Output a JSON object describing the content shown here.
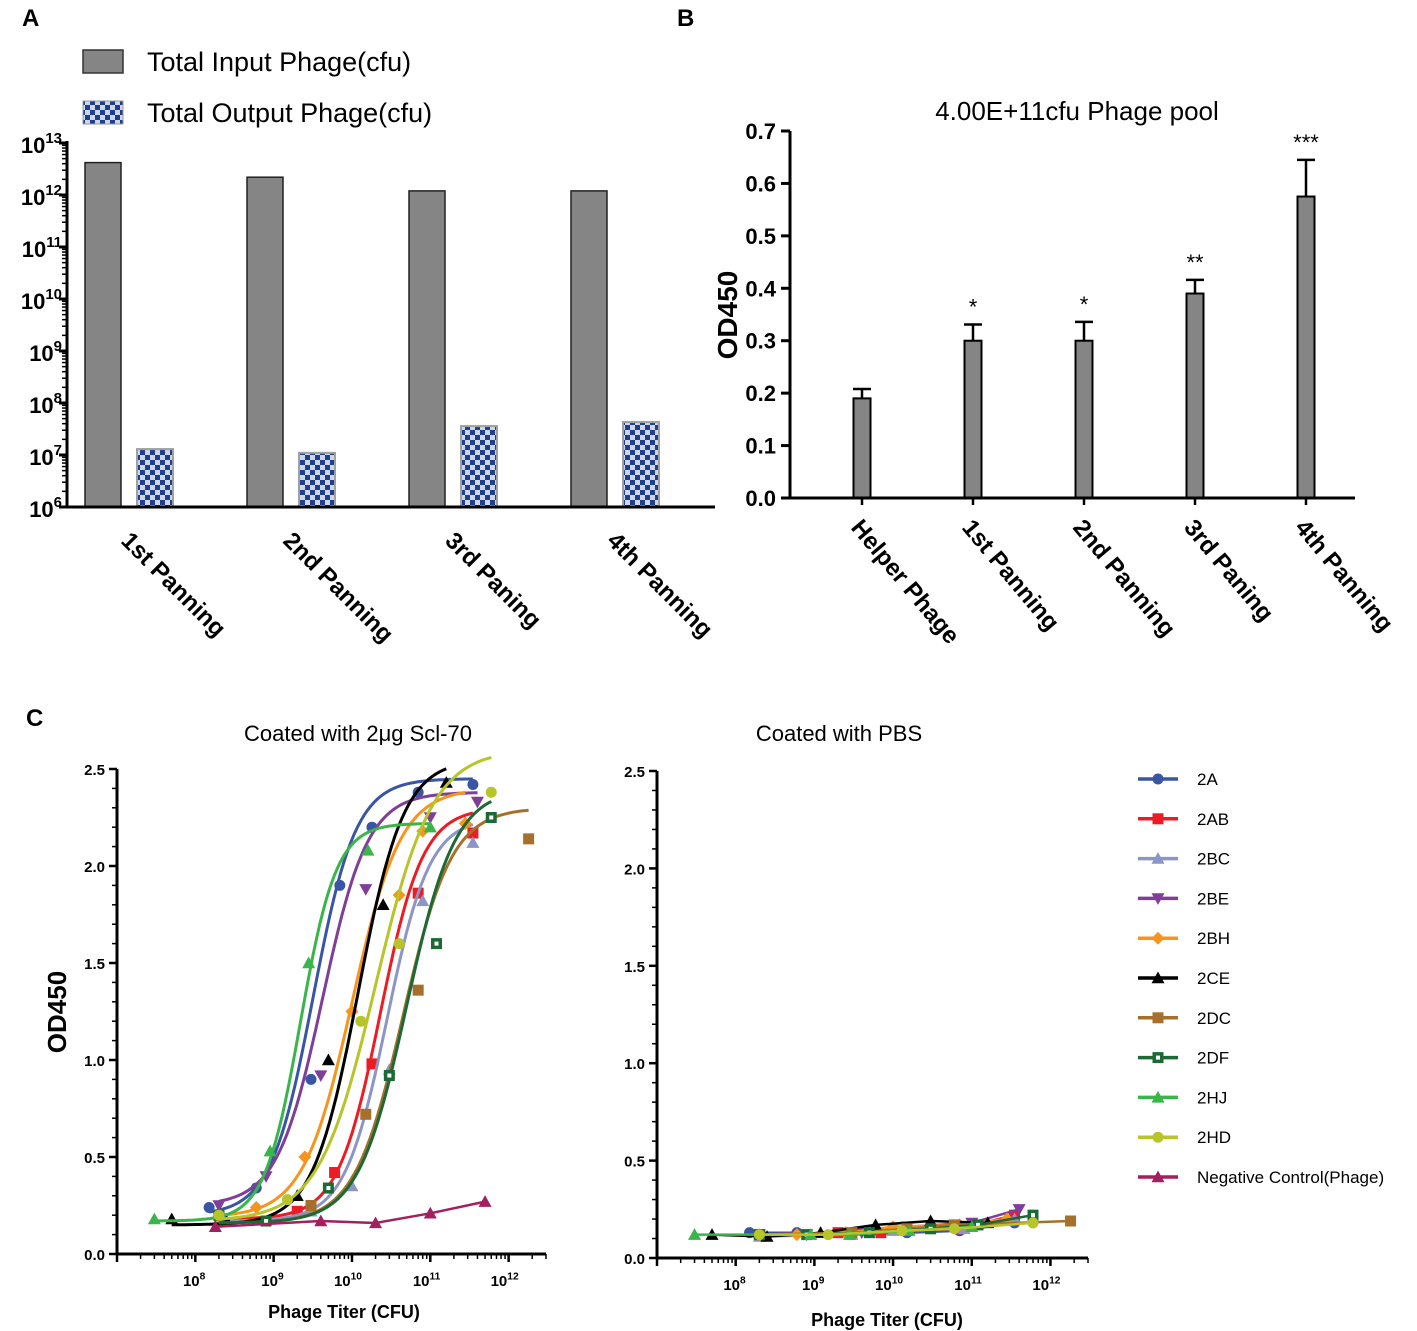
{
  "panels": {
    "a": "A",
    "b": "B",
    "c": "C"
  },
  "colors": {
    "input_bar": "#858585",
    "output_bar_fg": "#1e3f8e",
    "output_bar_bg": "#cfd6e6",
    "b_bar": "#858585"
  },
  "chart_data": [
    {
      "id": "A",
      "type": "bar",
      "scale": "log",
      "categories": [
        "1st Panning",
        "2nd Panning",
        "3rd Paning",
        "4th Panning"
      ],
      "series": [
        {
          "name": "Total Input Phage(cfu)",
          "values": [
            4200000000000.0,
            2200000000000.0,
            1200000000000.0,
            1200000000000.0
          ]
        },
        {
          "name": "Total Output Phage(cfu)",
          "values": [
            13000000.0,
            11000000.0,
            36000000.0,
            43000000.0
          ]
        }
      ],
      "yticks": [
        {
          "exp": 6,
          "label": "6"
        },
        {
          "exp": 7,
          "label": "7"
        },
        {
          "exp": 8,
          "label": "8"
        },
        {
          "exp": 9,
          "label": "9"
        },
        {
          "exp": 10,
          "label": "10"
        },
        {
          "exp": 11,
          "label": "11"
        },
        {
          "exp": 12,
          "label": "12"
        },
        {
          "exp": 13,
          "label": "13"
        }
      ],
      "tick_base": "10",
      "ylim": [
        1000000.0,
        10000000000000.0
      ]
    },
    {
      "id": "B",
      "type": "bar",
      "title": "4.00E+11cfu Phage pool",
      "ylabel": "OD450",
      "categories": [
        "Helper Phage",
        "1st Panning",
        "2nd Panning",
        "3rd Paning",
        "4th Panning"
      ],
      "values": [
        0.19,
        0.3,
        0.3,
        0.39,
        0.575
      ],
      "errors": [
        0.018,
        0.031,
        0.036,
        0.026,
        0.07
      ],
      "significance": [
        "",
        "*",
        "*",
        "**",
        "***"
      ],
      "yticks": [
        "0.0",
        "0.1",
        "0.2",
        "0.3",
        "0.4",
        "0.5",
        "0.6",
        "0.7"
      ],
      "ylim": [
        0,
        0.7
      ]
    },
    {
      "id": "C1",
      "type": "scatter",
      "title": "Coated with 2μg Scl-70",
      "ylabel": "OD450",
      "xlabel": "Phage Titer (CFU)",
      "xscale": "log",
      "xlim": [
        10000000.0,
        3000000000000.0
      ],
      "ylim": [
        0,
        2.5
      ],
      "yticks": [
        "0.0",
        "0.5",
        "1.0",
        "1.5",
        "2.0",
        "2.5"
      ],
      "xticks": [
        {
          "exp": 8,
          "label": "8"
        },
        {
          "exp": 9,
          "label": "9"
        },
        {
          "exp": 10,
          "label": "10"
        },
        {
          "exp": 11,
          "label": "11"
        },
        {
          "exp": 12,
          "label": "12"
        }
      ],
      "tick_base": "10",
      "series": [
        {
          "name": "2A",
          "color": "#3955a3",
          "marker": "circle",
          "ec50": 3200000000.0,
          "bottom": 0.2,
          "top": 2.45,
          "hill": 1.6,
          "x": [
            150000000.0,
            600000000.0,
            3000000000.0,
            7000000000.0,
            18000000000.0,
            70000000000.0,
            350000000000.0
          ],
          "y": [
            0.24,
            0.34,
            0.9,
            1.9,
            2.2,
            2.38,
            2.42
          ]
        },
        {
          "name": "2AB",
          "color": "#ed1c24",
          "marker": "square",
          "ec50": 23000000000.0,
          "bottom": 0.18,
          "top": 2.3,
          "hill": 1.6,
          "x": [
            200000000.0,
            2000000000.0,
            6000000000.0,
            18000000000.0,
            70000000000.0,
            350000000000.0
          ],
          "y": [
            0.2,
            0.22,
            0.42,
            0.98,
            1.86,
            2.17
          ]
        },
        {
          "name": "2BC",
          "color": "#8c96c6",
          "marker": "triangle-up",
          "ec50": 28000000000.0,
          "bottom": 0.17,
          "top": 2.25,
          "hill": 1.6,
          "x": [
            200000000.0,
            3000000000.0,
            10000000000.0,
            30000000000.0,
            80000000000.0,
            350000000000.0
          ],
          "y": [
            0.18,
            0.22,
            0.35,
            0.95,
            1.82,
            2.12
          ]
        },
        {
          "name": "2BE",
          "color": "#7f3f98",
          "marker": "triangle-down",
          "ec50": 4200000000.0,
          "bottom": 0.25,
          "top": 2.38,
          "hill": 1.5,
          "x": [
            200000000.0,
            800000000.0,
            4000000000.0,
            15000000000.0,
            100000000000.0,
            400000000000.0
          ],
          "y": [
            0.25,
            0.4,
            0.92,
            1.88,
            2.25,
            2.33
          ]
        },
        {
          "name": "2BH",
          "color": "#f7941d",
          "marker": "diamond",
          "ec50": 10000000000.0,
          "bottom": 0.19,
          "top": 2.4,
          "hill": 1.4,
          "x": [
            200000000.0,
            600000000.0,
            2500000000.0,
            10000000000.0,
            40000000000.0,
            80000000000.0,
            280000000000.0
          ],
          "y": [
            0.19,
            0.24,
            0.5,
            1.25,
            1.85,
            2.18,
            2.22
          ]
        },
        {
          "name": "2CE",
          "color": "#000000",
          "marker": "triangle-up",
          "ec50": 12000000000.0,
          "bottom": 0.15,
          "top": 2.55,
          "hill": 1.5,
          "x": [
            50000000.0,
            250000000.0,
            2000000000.0,
            5000000000.0,
            25000000000.0,
            160000000000.0
          ],
          "y": [
            0.18,
            0.17,
            0.3,
            1.0,
            1.8,
            2.43
          ]
        },
        {
          "name": "2DC",
          "color": "#a6702c",
          "marker": "square",
          "ec50": 45000000000.0,
          "bottom": 0.16,
          "top": 2.3,
          "hill": 1.4,
          "x": [
            200000000.0,
            3000000000.0,
            15000000000.0,
            70000000000.0,
            1800000000000.0
          ],
          "y": [
            0.2,
            0.25,
            0.72,
            1.36,
            2.14
          ]
        },
        {
          "name": "2DF",
          "color": "#1b6a36",
          "marker": "square-open",
          "ec50": 50000000000.0,
          "bottom": 0.16,
          "top": 2.4,
          "hill": 1.4,
          "x": [
            200000000.0,
            800000000.0,
            5000000000.0,
            30000000000.0,
            120000000000.0,
            600000000000.0
          ],
          "y": [
            0.2,
            0.17,
            0.34,
            0.92,
            1.6,
            2.25
          ]
        },
        {
          "name": "2HJ",
          "color": "#3ab54a",
          "marker": "triangle-up",
          "ec50": 2200000000.0,
          "bottom": 0.17,
          "top": 2.22,
          "hill": 1.9,
          "x": [
            30000000.0,
            900000000.0,
            2800000000.0,
            16000000000.0,
            100000000000.0
          ],
          "y": [
            0.18,
            0.53,
            1.5,
            2.08,
            2.2
          ]
        },
        {
          "name": "2HD",
          "color": "#b7c42a",
          "marker": "circle",
          "ec50": 20000000000.0,
          "bottom": 0.17,
          "top": 2.6,
          "hill": 1.2,
          "x": [
            200000000.0,
            1500000000.0,
            13000000000.0,
            40000000000.0,
            600000000000.0
          ],
          "y": [
            0.2,
            0.28,
            1.2,
            1.6,
            2.38
          ]
        },
        {
          "name": "Negative Control(Phage)",
          "color": "#a31f5e",
          "marker": "triangle-up",
          "linear": true,
          "x": [
            180000000.0,
            4000000000.0,
            20000000000.0,
            100000000000.0,
            500000000000.0
          ],
          "y": [
            0.14,
            0.17,
            0.16,
            0.21,
            0.27
          ]
        }
      ]
    },
    {
      "id": "C2",
      "type": "scatter",
      "title": "Coated with PBS",
      "xlabel": "Phage Titer (CFU)",
      "xscale": "log",
      "xlim": [
        10000000.0,
        3000000000000.0
      ],
      "ylim": [
        0,
        2.5
      ],
      "yticks": [
        "0.0",
        "0.5",
        "1.0",
        "1.5",
        "2.0",
        "2.5"
      ],
      "xticks": [
        {
          "exp": 8,
          "label": "8"
        },
        {
          "exp": 9,
          "label": "9"
        },
        {
          "exp": 10,
          "label": "10"
        },
        {
          "exp": 11,
          "label": "11"
        },
        {
          "exp": 12,
          "label": "12"
        }
      ],
      "tick_base": "10",
      "series": [
        {
          "name": "2A",
          "color": "#3955a3",
          "marker": "circle",
          "x": [
            150000000.0,
            600000000.0,
            3000000000.0,
            15000000000.0,
            70000000000.0,
            350000000000.0
          ],
          "y": [
            0.13,
            0.13,
            0.12,
            0.13,
            0.14,
            0.18
          ]
        },
        {
          "name": "2AB",
          "color": "#ed1c24",
          "marker": "square",
          "x": [
            200000000.0,
            2000000000.0,
            7000000000.0,
            70000000000.0,
            350000000000.0
          ],
          "y": [
            0.12,
            0.13,
            0.13,
            0.15,
            0.22
          ]
        },
        {
          "name": "2BC",
          "color": "#8c96c6",
          "marker": "triangle-up",
          "x": [
            200000000.0,
            3000000000.0,
            10000000000.0,
            80000000000.0,
            350000000000.0
          ],
          "y": [
            0.11,
            0.12,
            0.14,
            0.15,
            0.2
          ]
        },
        {
          "name": "2BE",
          "color": "#7f3f98",
          "marker": "triangle-down",
          "x": [
            200000000.0,
            800000000.0,
            4000000000.0,
            15000000000.0,
            100000000000.0,
            400000000000.0
          ],
          "y": [
            0.12,
            0.12,
            0.13,
            0.16,
            0.18,
            0.25
          ]
        },
        {
          "name": "2BH",
          "color": "#f7941d",
          "marker": "diamond",
          "x": [
            200000000.0,
            600000000.0,
            2500000000.0,
            10000000000.0,
            70000000000.0,
            280000000000.0
          ],
          "y": [
            0.12,
            0.12,
            0.13,
            0.16,
            0.17,
            0.2
          ]
        },
        {
          "name": "2CE",
          "color": "#000000",
          "marker": "triangle-up",
          "x": [
            50000000.0,
            250000000.0,
            1200000000.0,
            6000000000.0,
            30000000000.0,
            160000000000.0
          ],
          "y": [
            0.12,
            0.11,
            0.13,
            0.17,
            0.19,
            0.18
          ]
        },
        {
          "name": "2DC",
          "color": "#a6702c",
          "marker": "square",
          "x": [
            200000000.0,
            3000000000.0,
            15000000000.0,
            60000000000.0,
            1800000000000.0
          ],
          "y": [
            0.12,
            0.13,
            0.15,
            0.17,
            0.19
          ]
        },
        {
          "name": "2DF",
          "color": "#1b6a36",
          "marker": "square-open",
          "x": [
            200000000.0,
            800000000.0,
            5000000000.0,
            30000000000.0,
            120000000000.0,
            600000000000.0
          ],
          "y": [
            0.12,
            0.12,
            0.13,
            0.15,
            0.17,
            0.22
          ]
        },
        {
          "name": "2HJ",
          "color": "#3ab54a",
          "marker": "triangle-up",
          "x": [
            30000000.0,
            900000000.0,
            2800000000.0,
            16000000000.0,
            100000000000.0
          ],
          "y": [
            0.12,
            0.12,
            0.12,
            0.14,
            0.16
          ]
        },
        {
          "name": "2HD",
          "color": "#b7c42a",
          "marker": "circle",
          "x": [
            200000000.0,
            1500000000.0,
            13000000000.0,
            60000000000.0,
            600000000000.0
          ],
          "y": [
            0.12,
            0.12,
            0.14,
            0.15,
            0.18
          ]
        }
      ]
    }
  ]
}
